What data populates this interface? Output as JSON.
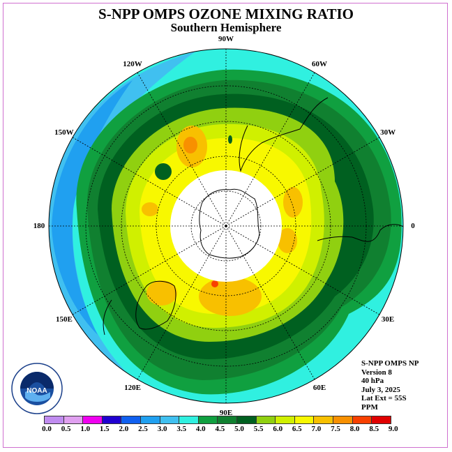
{
  "title": "S-NPP OMPS OZONE MIXING RATIO",
  "subtitle": "Southern Hemisphere",
  "longitude_labels": [
    {
      "text": "90W",
      "lon": -90
    },
    {
      "text": "60W",
      "lon": -60
    },
    {
      "text": "30W",
      "lon": -30
    },
    {
      "text": "0",
      "lon": 0
    },
    {
      "text": "30E",
      "lon": 30
    },
    {
      "text": "60E",
      "lon": 60
    },
    {
      "text": "90E",
      "lon": 90
    },
    {
      "text": "120E",
      "lon": 120
    },
    {
      "text": "150E",
      "lon": 150
    },
    {
      "text": "180",
      "lon": 180
    },
    {
      "text": "150W",
      "lon": -150
    },
    {
      "text": "120W",
      "lon": -120
    }
  ],
  "info": {
    "instrument": "S-NPP OMPS NP",
    "version": "Version 8",
    "level": "40 hPa",
    "date": "July 3, 2025",
    "lat_ext": "Lat Ext = 55S",
    "units": "PPM"
  },
  "logo": {
    "text": "NOAA",
    "icon": "noaa-logo-icon"
  },
  "colorbar": {
    "ticks": [
      "0.0",
      "0.5",
      "1.0",
      "1.5",
      "2.0",
      "2.5",
      "3.0",
      "3.5",
      "4.0",
      "4.5",
      "5.0",
      "5.5",
      "6.0",
      "6.5",
      "7.0",
      "7.5",
      "8.0",
      "8.5",
      "9.0"
    ],
    "colors": [
      "#c08cf0",
      "#e0a0f0",
      "#f000f0",
      "#2000d0",
      "#1060f0",
      "#20a0f0",
      "#40c0f0",
      "#30f0e0",
      "#10a040",
      "#108030",
      "#006020",
      "#90d010",
      "#d0f000",
      "#f8f800",
      "#f8c000",
      "#f89000",
      "#f84000",
      "#e00000",
      "#8c5a3c"
    ]
  },
  "chart_data": {
    "type": "polar_contour_map",
    "title": "S-NPP OMPS OZONE MIXING RATIO",
    "subtitle": "Southern Hemisphere",
    "projection": "south-polar stereographic",
    "lat_extent": "55S",
    "level": "40 hPa",
    "units": "PPM",
    "value_range": [
      0.0,
      9.0
    ],
    "contour_interval": 0.5,
    "polar_night_no_data": true,
    "approx_max": 7.5,
    "approx_outer_min": 3.0
  }
}
